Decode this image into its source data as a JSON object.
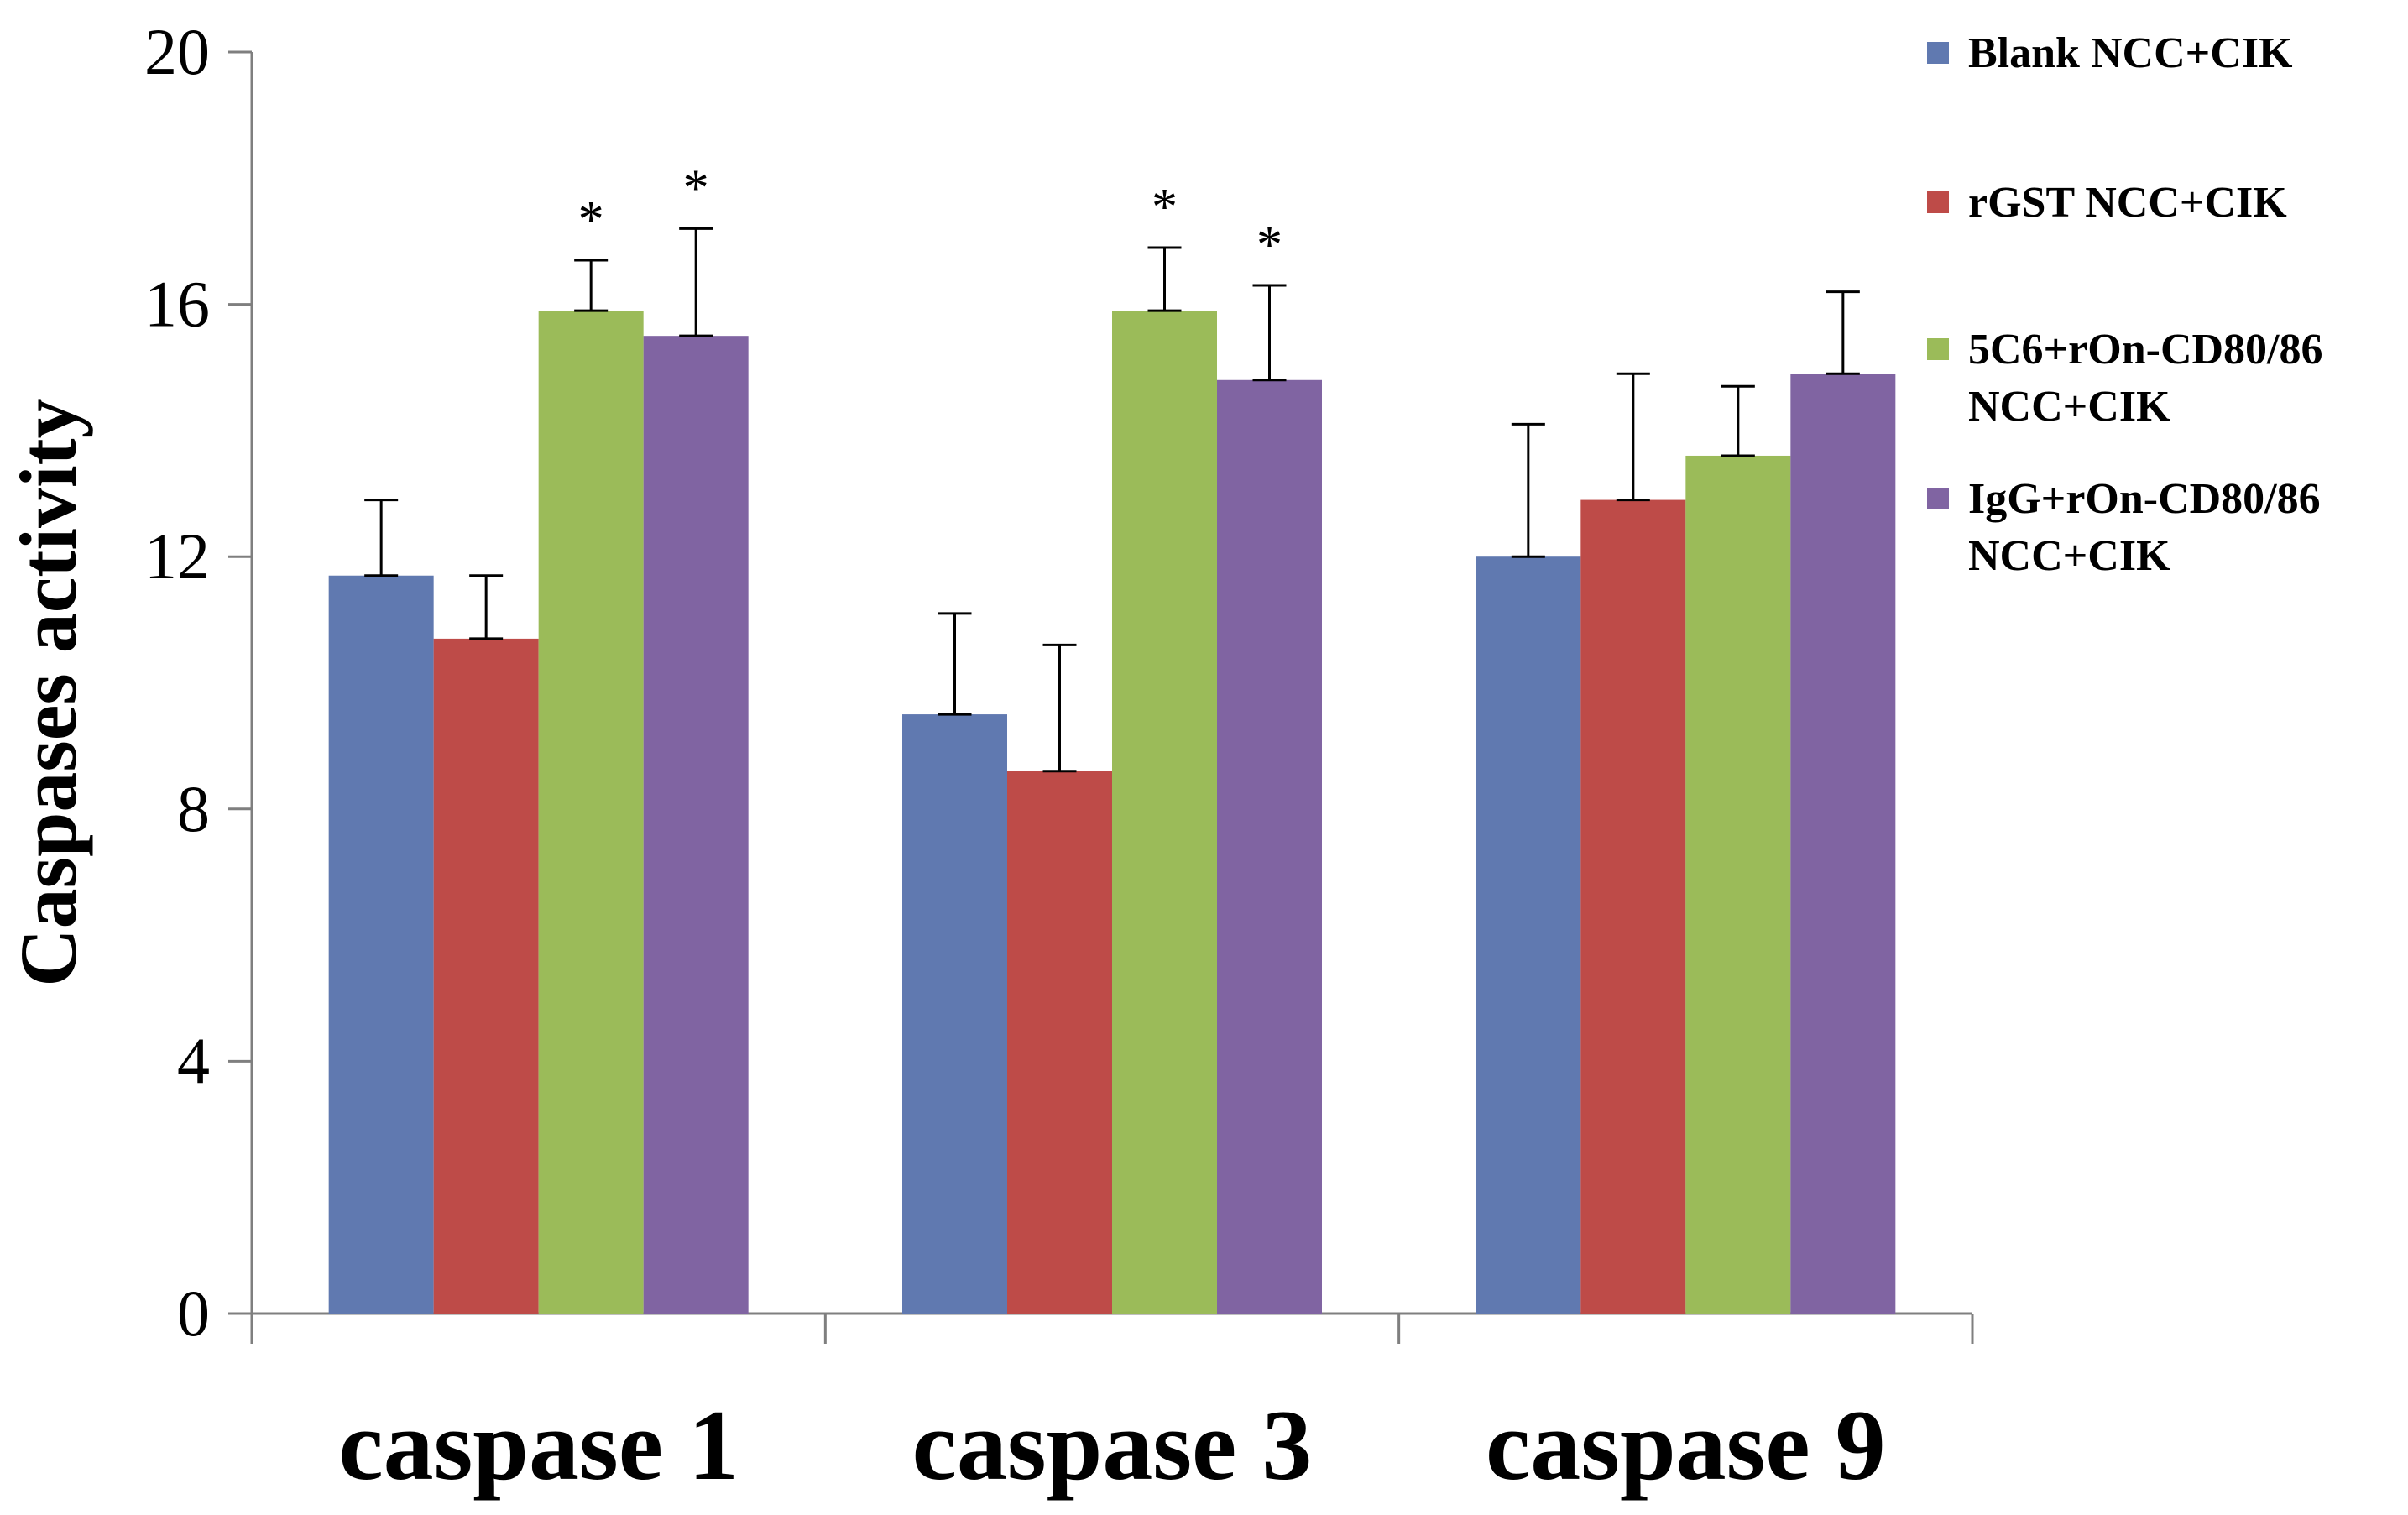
{
  "chart_data": {
    "type": "bar",
    "title": "",
    "xlabel": "",
    "ylabel": "Caspases  activity",
    "ylim": [
      0,
      20
    ],
    "yticks": [
      0,
      4,
      8,
      12,
      16,
      20
    ],
    "categories": [
      "caspase 1",
      "caspase 3",
      "caspase 9"
    ],
    "legend_position": "right",
    "series": [
      {
        "name": "Blank NCC+CIK",
        "legend_lines": [
          "Blank NCC+CIK"
        ],
        "color": "#6079B0",
        "values": [
          11.7,
          9.5,
          12.0
        ],
        "errors": [
          1.2,
          1.6,
          2.1
        ],
        "significance": [
          "",
          "",
          ""
        ]
      },
      {
        "name": "rGST NCC+CIK",
        "legend_lines": [
          "rGST NCC+CIK"
        ],
        "color": "#BE4B48",
        "values": [
          10.7,
          8.6,
          12.9
        ],
        "errors": [
          1.0,
          2.0,
          2.0
        ],
        "significance": [
          "",
          "",
          ""
        ]
      },
      {
        "name": "5C6+rOn-CD80/86 NCC+CIK",
        "legend_lines": [
          "5C6+rOn-CD80/86",
          "NCC+CIK"
        ],
        "color": "#9BBB59",
        "values": [
          15.9,
          15.9,
          13.6
        ],
        "errors": [
          0.8,
          1.0,
          1.1
        ],
        "significance": [
          "*",
          "*",
          ""
        ]
      },
      {
        "name": "IgG+rOn-CD80/86 NCC+CIK",
        "legend_lines": [
          "IgG+rOn-CD80/86",
          "NCC+CIK"
        ],
        "color": "#8064A2",
        "values": [
          15.5,
          14.8,
          14.9
        ],
        "errors": [
          1.7,
          1.5,
          1.3
        ],
        "significance": [
          "*",
          "*",
          ""
        ]
      }
    ]
  }
}
